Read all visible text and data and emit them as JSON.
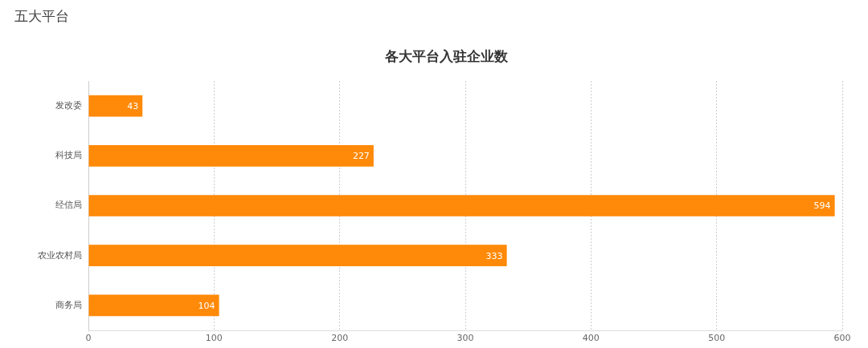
{
  "chart_data": {
    "type": "bar",
    "orientation": "horizontal",
    "title": "五大平台",
    "subtitle": "各大平台入驻企业数",
    "categories": [
      "发改委",
      "科技局",
      "经信局",
      "农业农村局",
      "商务局"
    ],
    "values": [
      43,
      227,
      594,
      333,
      104
    ],
    "color": "#ff8908",
    "xlim": [
      0,
      600
    ],
    "xticks": [
      0,
      100,
      200,
      300,
      400,
      500,
      600
    ],
    "grid": "x",
    "data_labels": true
  }
}
